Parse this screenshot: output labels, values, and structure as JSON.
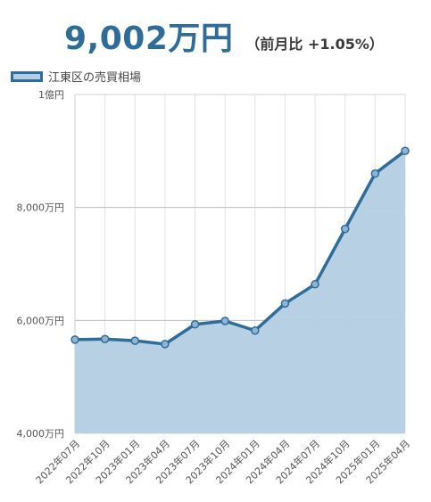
{
  "headline": {
    "price": "9,002万円",
    "change": "（前月比 +1.05%）"
  },
  "colors": {
    "line": "#2e6c99",
    "fill": "#b3cde3",
    "grid": "#cccccc",
    "price": "#2e6c99"
  },
  "chart_data": {
    "type": "area",
    "legend": "江東区の売買相場",
    "legend_position": "top-left",
    "grid": true,
    "x": [
      "2022年07月",
      "2022年10月",
      "2023年01月",
      "2023年04月",
      "2023年07月",
      "2023年10月",
      "2024年01月",
      "2024年04月",
      "2024年07月",
      "2024年10月",
      "2025年01月",
      "2025年04月"
    ],
    "series": [
      {
        "name": "江東区の売買相場",
        "values": [
          5660,
          5670,
          5640,
          5580,
          5930,
          5990,
          5820,
          6300,
          6640,
          7620,
          8600,
          9002
        ]
      }
    ],
    "ylim": [
      4000,
      10000
    ],
    "y_ticks": [
      4000,
      6000,
      8000,
      10000
    ],
    "y_tick_labels": [
      "4,000万円",
      "6,000万円",
      "8,000万円",
      "1億円"
    ],
    "x_tick_labels": [
      "2022年07月",
      "2022年10月",
      "2023年01月",
      "2023年04月",
      "2023年07月",
      "2023年10月",
      "2024年01月",
      "2024年04月",
      "2024年07月",
      "2024年10月",
      "2025年01月",
      "2025年04月"
    ]
  }
}
